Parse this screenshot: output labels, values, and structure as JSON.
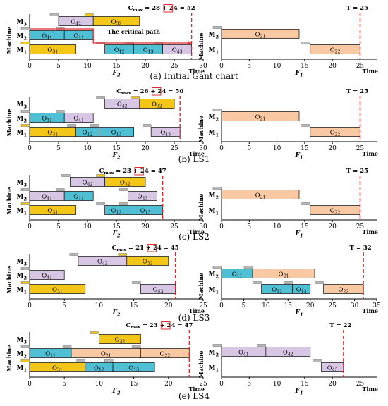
{
  "figure": {
    "axis_x_label": "Time",
    "axis_y_label": "Machine"
  },
  "chart_data": [
    {
      "id": "a",
      "type": "gantt",
      "caption": "(a) Initial Gant chart",
      "left": {
        "factory_label": "F2",
        "cmax_text": "Cmax = 28 + 24 = 52",
        "cmax_value": 28,
        "xlim": [
          0,
          30
        ],
        "ticks": [
          0,
          5,
          10,
          15,
          20,
          25,
          30
        ],
        "machines": [
          "M3",
          "M2",
          "M1"
        ],
        "critical_path_label": "The critical path",
        "ops": [
          {
            "label": "O42",
            "machine": "M3",
            "start": 5,
            "end": 11,
            "color": "#d7c6e4"
          },
          {
            "label": "O32",
            "machine": "M3",
            "start": 11,
            "end": 19,
            "color": "#f4c617"
          },
          {
            "label": "O41",
            "machine": "M2",
            "start": 0,
            "end": 6,
            "color": "#4fc0d4"
          },
          {
            "label": "O11",
            "machine": "M2",
            "start": 6,
            "end": 11,
            "color": "#4fc0d4"
          },
          {
            "label": "O31",
            "machine": "M1",
            "start": 0,
            "end": 8,
            "color": "#f4c617"
          },
          {
            "label": "O12",
            "machine": "M1",
            "start": 13,
            "end": 18,
            "color": "#4fc0d4"
          },
          {
            "label": "O13",
            "machine": "M1",
            "start": 18,
            "end": 23,
            "color": "#4fc0d4"
          },
          {
            "label": "O43",
            "machine": "M1",
            "start": 23,
            "end": 28,
            "color": "#d7c6e4"
          }
        ]
      },
      "right": {
        "factory_label": "F1",
        "t_text": "T = 25",
        "t_value": 25,
        "xlim": [
          0,
          28
        ],
        "ticks": [
          0,
          5,
          10,
          15,
          20,
          25
        ],
        "machines": [
          "M2",
          "M1"
        ],
        "ops": [
          {
            "label": "O21",
            "machine": "M2",
            "start": 0,
            "end": 14,
            "color": "#f9c9a3"
          },
          {
            "label": "O22",
            "machine": "M1",
            "start": 16,
            "end": 25,
            "color": "#f9c9a3"
          }
        ]
      }
    },
    {
      "id": "b",
      "type": "gantt",
      "caption": "(b) LS1",
      "left": {
        "factory_label": "F2",
        "cmax_text": "Cmax = 26 + 24 = 50",
        "cmax_value": 26,
        "xlim": [
          0,
          30
        ],
        "ticks": [
          0,
          5,
          10,
          15,
          20,
          25,
          30
        ],
        "machines": [
          "M3",
          "M2",
          "M1"
        ],
        "ops": [
          {
            "label": "O42",
            "machine": "M3",
            "start": 13,
            "end": 19,
            "color": "#d7c6e4"
          },
          {
            "label": "O32",
            "machine": "M3",
            "start": 19,
            "end": 25,
            "color": "#f4c617"
          },
          {
            "label": "O11",
            "machine": "M2",
            "start": 0,
            "end": 6,
            "color": "#4fc0d4"
          },
          {
            "label": "O41",
            "machine": "M2",
            "start": 6,
            "end": 11,
            "color": "#d7c6e4"
          },
          {
            "label": "O31",
            "machine": "M1",
            "start": 0,
            "end": 8,
            "color": "#f4c617"
          },
          {
            "label": "O12",
            "machine": "M1",
            "start": 8,
            "end": 12,
            "color": "#4fc0d4"
          },
          {
            "label": "O13",
            "machine": "M1",
            "start": 12,
            "end": 18,
            "color": "#4fc0d4"
          },
          {
            "label": "O43",
            "machine": "M1",
            "start": 21,
            "end": 26,
            "color": "#d7c6e4"
          }
        ]
      },
      "right": {
        "factory_label": "F1",
        "t_text": "T = 25",
        "t_value": 25,
        "xlim": [
          0,
          28
        ],
        "ticks": [
          0,
          5,
          10,
          15,
          20,
          25
        ],
        "machines": [
          "M2",
          "M1"
        ],
        "ops": [
          {
            "label": "O21",
            "machine": "M2",
            "start": 0,
            "end": 14,
            "color": "#f9c9a3"
          },
          {
            "label": "O22",
            "machine": "M1",
            "start": 16,
            "end": 25,
            "color": "#f9c9a3"
          }
        ]
      }
    },
    {
      "id": "c",
      "type": "gantt",
      "caption": "(c) LS2",
      "left": {
        "factory_label": "F2",
        "cmax_text": "Cmax = 23 + 24 = 47",
        "cmax_value": 23,
        "xlim": [
          0,
          30
        ],
        "ticks": [
          0,
          5,
          10,
          15,
          20,
          25,
          30
        ],
        "machines": [
          "M3",
          "M2",
          "M1"
        ],
        "ops": [
          {
            "label": "O42",
            "machine": "M3",
            "start": 7,
            "end": 13,
            "color": "#d7c6e4"
          },
          {
            "label": "O32",
            "machine": "M3",
            "start": 13,
            "end": 20,
            "color": "#f4c617"
          },
          {
            "label": "O41",
            "machine": "M2",
            "start": 0,
            "end": 6,
            "color": "#d7c6e4"
          },
          {
            "label": "O11",
            "machine": "M2",
            "start": 6,
            "end": 11,
            "color": "#4fc0d4"
          },
          {
            "label": "O43",
            "machine": "M2",
            "start": 17,
            "end": 22,
            "color": "#d7c6e4"
          },
          {
            "label": "O31",
            "machine": "M1",
            "start": 0,
            "end": 8,
            "color": "#f4c617"
          },
          {
            "label": "O12",
            "machine": "M1",
            "start": 13,
            "end": 17,
            "color": "#4fc0d4"
          },
          {
            "label": "O13",
            "machine": "M1",
            "start": 17,
            "end": 23,
            "color": "#4fc0d4"
          }
        ]
      },
      "right": {
        "factory_label": "F1",
        "t_text": "T = 25",
        "t_value": 25,
        "xlim": [
          0,
          28
        ],
        "ticks": [
          0,
          5,
          10,
          15,
          20,
          25
        ],
        "machines": [
          "M2",
          "M1"
        ],
        "ops": [
          {
            "label": "O21",
            "machine": "M2",
            "start": 0,
            "end": 14,
            "color": "#f9c9a3"
          },
          {
            "label": "O22",
            "machine": "M1",
            "start": 16,
            "end": 25,
            "color": "#f9c9a3"
          }
        ]
      }
    },
    {
      "id": "d",
      "type": "gantt",
      "caption": "(d) LS3",
      "left": {
        "factory_label": "F2",
        "cmax_text": "Cmax = 21 + 24 = 45",
        "cmax_value": 21,
        "xlim": [
          0,
          25
        ],
        "ticks": [
          0,
          5,
          10,
          15,
          20,
          25
        ],
        "machines": [
          "M3",
          "M2",
          "M1"
        ],
        "ops": [
          {
            "label": "O42",
            "machine": "M3",
            "start": 7,
            "end": 14,
            "color": "#d7c6e4"
          },
          {
            "label": "O32",
            "machine": "M3",
            "start": 14,
            "end": 20,
            "color": "#f4c617"
          },
          {
            "label": "O41",
            "machine": "M2",
            "start": 0,
            "end": 5,
            "color": "#d7c6e4"
          },
          {
            "label": "O31",
            "machine": "M1",
            "start": 0,
            "end": 8,
            "color": "#f4c617"
          },
          {
            "label": "O43",
            "machine": "M1",
            "start": 16,
            "end": 21,
            "color": "#d7c6e4"
          }
        ]
      },
      "right": {
        "factory_label": "F1",
        "t_text": "T = 32",
        "t_value": 32,
        "xlim": [
          0,
          35
        ],
        "ticks": [
          0,
          5,
          10,
          15,
          20,
          25,
          30,
          35
        ],
        "machines": [
          "M2",
          "M1"
        ],
        "ops": [
          {
            "label": "O11",
            "machine": "M2",
            "start": 0,
            "end": 7,
            "color": "#4fc0d4"
          },
          {
            "label": "O21",
            "machine": "M2",
            "start": 7,
            "end": 21,
            "color": "#f9c9a3"
          },
          {
            "label": "O12",
            "machine": "M1",
            "start": 9,
            "end": 16,
            "color": "#4fc0d4"
          },
          {
            "label": "O13",
            "machine": "M1",
            "start": 16,
            "end": 20,
            "color": "#4fc0d4"
          },
          {
            "label": "O22",
            "machine": "M1",
            "start": 23,
            "end": 32,
            "color": "#f9c9a3"
          }
        ]
      }
    },
    {
      "id": "e",
      "type": "gantt",
      "caption": "(e) LS4",
      "left": {
        "factory_label": "F2",
        "cmax_text": "Cmax = 23 + 24 = 47",
        "cmax_value": 23,
        "xlim": [
          0,
          25
        ],
        "ticks": [
          0,
          5,
          10,
          15,
          20,
          25
        ],
        "machines": [
          "M3",
          "M2",
          "M1"
        ],
        "ops": [
          {
            "label": "O32",
            "machine": "M3",
            "start": 10,
            "end": 16,
            "color": "#f4c617"
          },
          {
            "label": "O11",
            "machine": "M2",
            "start": 0,
            "end": 6,
            "color": "#4fc0d4"
          },
          {
            "label": "O21",
            "machine": "M2",
            "start": 6,
            "end": 16,
            "color": "#f9c9a3"
          },
          {
            "label": "O22",
            "machine": "M2",
            "start": 16,
            "end": 23,
            "color": "#f9c9a3"
          },
          {
            "label": "O31",
            "machine": "M1",
            "start": 0,
            "end": 8,
            "color": "#f4c617"
          },
          {
            "label": "O12",
            "machine": "M1",
            "start": 8,
            "end": 12,
            "color": "#4fc0d4"
          },
          {
            "label": "O13",
            "machine": "M1",
            "start": 12,
            "end": 18,
            "color": "#4fc0d4"
          }
        ]
      },
      "right": {
        "factory_label": "F1",
        "t_text": "T = 22",
        "t_value": 22,
        "xlim": [
          0,
          28
        ],
        "ticks": [
          0,
          5,
          10,
          15,
          20,
          25
        ],
        "machines": [
          "M2",
          "M1"
        ],
        "ops": [
          {
            "label": "O41",
            "machine": "M2",
            "start": 0,
            "end": 8,
            "color": "#d7c6e4"
          },
          {
            "label": "O42",
            "machine": "M2",
            "start": 8,
            "end": 16,
            "color": "#d7c6e4"
          },
          {
            "label": "O43",
            "machine": "M1",
            "start": 18,
            "end": 22,
            "color": "#d7c6e4"
          }
        ]
      }
    }
  ]
}
